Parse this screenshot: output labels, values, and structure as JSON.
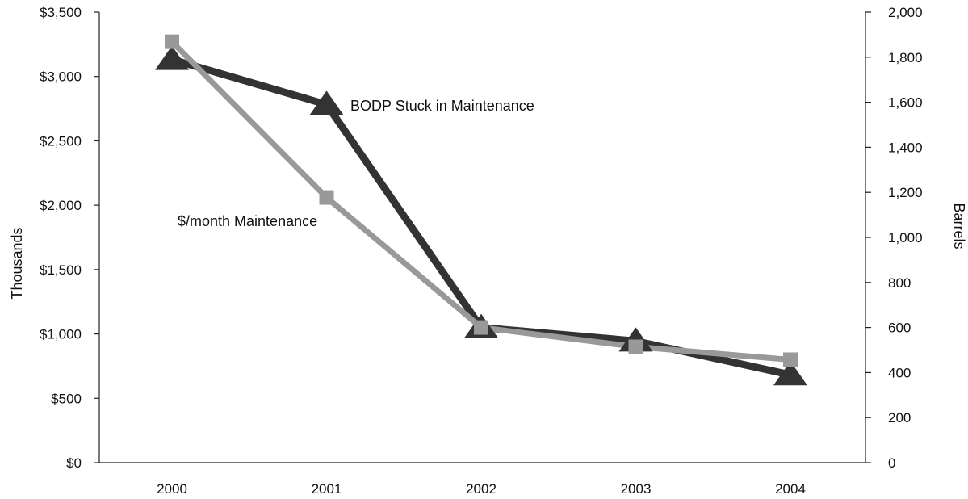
{
  "chart_data": {
    "type": "line",
    "categories": [
      "2000",
      "2001",
      "2002",
      "2003",
      "2004"
    ],
    "left_axis": {
      "label": "Thousands",
      "range": [
        0,
        3500
      ],
      "ticks": [
        0,
        500,
        1000,
        1500,
        2000,
        2500,
        3000,
        3500
      ],
      "tick_labels": [
        "$0",
        "$500",
        "$1,000",
        "$1,500",
        "$2,000",
        "$2,500",
        "$3,000",
        "$3,500"
      ]
    },
    "right_axis": {
      "label": "Barrels",
      "range": [
        0,
        2000
      ],
      "ticks": [
        0,
        200,
        400,
        600,
        800,
        1000,
        1200,
        1400,
        1600,
        1800,
        2000
      ],
      "tick_labels": [
        "0",
        "200",
        "400",
        "600",
        "800",
        "1,000",
        "1,200",
        "1,400",
        "1,600",
        "1,800",
        "2,000"
      ]
    },
    "series": [
      {
        "name": "BODP Stuck in Maintenance",
        "axis": "right",
        "marker": "triangle",
        "color": "#333333",
        "values": [
          1790,
          1590,
          600,
          540,
          390
        ]
      },
      {
        "name": "$/month Maintenance",
        "axis": "left",
        "marker": "square",
        "color": "#999999",
        "values": [
          3270,
          2060,
          1050,
          900,
          800
        ]
      }
    ],
    "grid": false,
    "legend": "inline labels"
  }
}
